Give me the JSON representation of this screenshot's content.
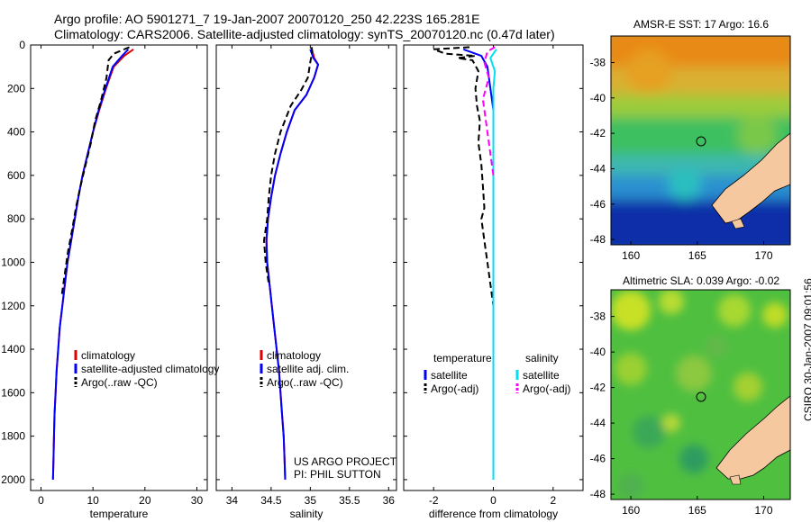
{
  "header": {
    "line1": "Argo profile: AO 5901271_7 19-Jan-2007 20070120_250 42.223S 165.281E",
    "line2": "Climatology: CARS2006. Satellite-adjusted climatology: synTS_20070120.nc (0.47d later)"
  },
  "colors": {
    "climatology": "#e00000",
    "satellite": "#0000ff",
    "argo": "#000000",
    "satellite_salinity": "#00e0f0",
    "argo_salinity_adj": "#ff00ff",
    "land": "#f5c8a0"
  },
  "chart_data": [
    {
      "type": "line",
      "id": "temperature",
      "xlabel": "temperature",
      "xlim": [
        -2,
        32
      ],
      "ylim": [
        2050,
        0
      ],
      "xticks": [
        "0",
        "10",
        "20",
        "30"
      ],
      "yticks": [
        "0",
        "200",
        "400",
        "600",
        "800",
        "1000",
        "1200",
        "1400",
        "1600",
        "1800",
        "2000"
      ],
      "series": [
        {
          "name": "climatology",
          "style": "solid",
          "color": "#e00000",
          "points": [
            [
              17.8,
              20
            ],
            [
              16,
              50
            ],
            [
              14,
              100
            ],
            [
              12.5,
              200
            ],
            [
              11.2,
              300
            ],
            [
              10,
              400
            ],
            [
              9,
              500
            ],
            [
              8,
              600
            ],
            [
              7.2,
              700
            ],
            [
              6.5,
              800
            ],
            [
              5.8,
              900
            ],
            [
              5.1,
              1000
            ],
            [
              4.6,
              1100
            ],
            [
              4.1,
              1200
            ],
            [
              3.6,
              1300
            ],
            [
              3.3,
              1400
            ],
            [
              3,
              1500
            ],
            [
              2.8,
              1600
            ],
            [
              2.6,
              1700
            ],
            [
              2.5,
              1800
            ],
            [
              2.4,
              1900
            ],
            [
              2.3,
              2000
            ]
          ]
        },
        {
          "name": "satellite-adjusted climatology",
          "style": "solid",
          "color": "#0000ff",
          "points": [
            [
              16.8,
              20
            ],
            [
              15.6,
              50
            ],
            [
              13.8,
              100
            ],
            [
              12.4,
              200
            ],
            [
              11.1,
              300
            ],
            [
              10,
              400
            ],
            [
              9,
              500
            ],
            [
              8,
              600
            ],
            [
              7.2,
              700
            ],
            [
              6.5,
              800
            ],
            [
              5.8,
              900
            ],
            [
              5.1,
              1000
            ],
            [
              4.6,
              1100
            ],
            [
              4.1,
              1200
            ],
            [
              3.6,
              1300
            ],
            [
              3.3,
              1400
            ],
            [
              3,
              1500
            ],
            [
              2.8,
              1600
            ],
            [
              2.6,
              1700
            ],
            [
              2.5,
              1800
            ],
            [
              2.4,
              1900
            ],
            [
              2.3,
              2000
            ]
          ]
        },
        {
          "name": "Argo(..raw -QC)",
          "style": "dash",
          "color": "#000000",
          "points": [
            [
              17,
              10
            ],
            [
              14,
              40
            ],
            [
              13,
              70
            ],
            [
              12.6,
              150
            ],
            [
              11.6,
              250
            ],
            [
              10.4,
              350
            ],
            [
              9.6,
              450
            ],
            [
              8.6,
              550
            ],
            [
              7.6,
              650
            ],
            [
              6.7,
              750
            ],
            [
              6,
              850
            ],
            [
              5.2,
              950
            ],
            [
              4.6,
              1050
            ],
            [
              4,
              1150
            ]
          ]
        }
      ],
      "legend": [
        "climatology",
        "satellite-adjusted climatology",
        "Argo(..raw -QC)"
      ],
      "legend_position": "lower-center"
    },
    {
      "type": "line",
      "id": "salinity",
      "xlabel": "salinity",
      "xlim": [
        33.8,
        36.1
      ],
      "ylim": [
        2050,
        0
      ],
      "xticks": [
        "34",
        "34.5",
        "35",
        "35.5",
        "36"
      ],
      "series": [
        {
          "name": "climatology",
          "style": "solid",
          "color": "#e00000",
          "points": [
            [
              35.02,
              20
            ],
            [
              35.05,
              60
            ],
            [
              35.1,
              90
            ],
            [
              35.05,
              150
            ],
            [
              34.95,
              230
            ],
            [
              34.8,
              300
            ],
            [
              34.7,
              400
            ],
            [
              34.62,
              500
            ],
            [
              34.55,
              600
            ],
            [
              34.5,
              700
            ],
            [
              34.46,
              800
            ],
            [
              34.44,
              900
            ],
            [
              34.45,
              1000
            ],
            [
              34.48,
              1100
            ],
            [
              34.51,
              1200
            ],
            [
              34.54,
              1300
            ],
            [
              34.57,
              1400
            ],
            [
              34.6,
              1500
            ],
            [
              34.62,
              1600
            ],
            [
              34.64,
              1700
            ],
            [
              34.66,
              1800
            ],
            [
              34.67,
              1900
            ],
            [
              34.68,
              2000
            ]
          ]
        },
        {
          "name": "satellite adj. clim.",
          "style": "solid",
          "color": "#0000ff",
          "points": [
            [
              35.0,
              20
            ],
            [
              35.04,
              60
            ],
            [
              35.1,
              90
            ],
            [
              35.05,
              150
            ],
            [
              34.95,
              230
            ],
            [
              34.8,
              300
            ],
            [
              34.7,
              400
            ],
            [
              34.62,
              500
            ],
            [
              34.55,
              600
            ],
            [
              34.5,
              700
            ],
            [
              34.46,
              800
            ],
            [
              34.44,
              900
            ],
            [
              34.45,
              1000
            ],
            [
              34.48,
              1100
            ],
            [
              34.51,
              1200
            ],
            [
              34.54,
              1300
            ],
            [
              34.57,
              1400
            ],
            [
              34.6,
              1500
            ],
            [
              34.62,
              1600
            ],
            [
              34.64,
              1700
            ],
            [
              34.66,
              1800
            ],
            [
              34.67,
              1900
            ],
            [
              34.68,
              2000
            ]
          ]
        },
        {
          "name": "Argo(..raw -QC)",
          "style": "dash",
          "color": "#000000",
          "points": [
            [
              35.02,
              10
            ],
            [
              35.02,
              40
            ],
            [
              35.0,
              80
            ],
            [
              34.97,
              150
            ],
            [
              34.88,
              210
            ],
            [
              34.75,
              280
            ],
            [
              34.62,
              400
            ],
            [
              34.55,
              500
            ],
            [
              34.5,
              600
            ],
            [
              34.47,
              700
            ],
            [
              34.45,
              800
            ],
            [
              34.41,
              900
            ],
            [
              34.43,
              1000
            ],
            [
              34.47,
              1100
            ]
          ]
        }
      ],
      "legend": [
        "climatology",
        "satellite adj. clim.",
        "Argo(..raw -QC)"
      ],
      "legend_position": "lower-center",
      "annotation": [
        "US ARGO PROJECT",
        "PI: PHIL SUTTON"
      ]
    },
    {
      "type": "line",
      "id": "difference",
      "xlabel": "difference from climatology",
      "xlim": [
        -3,
        3
      ],
      "ylim": [
        2050,
        0
      ],
      "xticks": [
        "-2",
        "0",
        "2"
      ],
      "series": [
        {
          "name": "temperature satellite",
          "style": "solid",
          "color": "#0000ff",
          "points": [
            [
              -1.0,
              20
            ],
            [
              -0.4,
              50
            ],
            [
              -0.2,
              100
            ],
            [
              -0.1,
              200
            ],
            [
              0,
              300
            ],
            [
              0,
              2000
            ]
          ]
        },
        {
          "name": "temperature Argo(-adj)",
          "style": "dash",
          "color": "#000000",
          "points": [
            [
              -0.8,
              10
            ],
            [
              -2.0,
              20
            ],
            [
              -1.6,
              40
            ],
            [
              -0.6,
              50
            ],
            [
              -1.2,
              60
            ],
            [
              -0.7,
              70
            ],
            [
              -0.5,
              120
            ],
            [
              -0.6,
              200
            ],
            [
              -0.55,
              280
            ],
            [
              -0.45,
              350
            ],
            [
              -0.5,
              450
            ],
            [
              -0.4,
              550
            ],
            [
              -0.35,
              650
            ],
            [
              -0.3,
              750
            ],
            [
              -0.4,
              800
            ],
            [
              -0.3,
              900
            ],
            [
              -0.2,
              1000
            ],
            [
              -0.1,
              1100
            ],
            [
              0,
              1200
            ]
          ]
        },
        {
          "name": "salinity satellite",
          "style": "solid",
          "color": "#00e0f0",
          "points": [
            [
              0.1,
              20
            ],
            [
              -0.1,
              60
            ],
            [
              0.05,
              120
            ],
            [
              0,
              200
            ],
            [
              0,
              2000
            ]
          ]
        },
        {
          "name": "salinity Argo(-adj)",
          "style": "dash",
          "color": "#ff00ff",
          "points": [
            [
              0.05,
              10
            ],
            [
              -0.2,
              30
            ],
            [
              -0.3,
              80
            ],
            [
              -0.15,
              150
            ],
            [
              -0.35,
              250
            ],
            [
              -0.25,
              350
            ],
            [
              -0.1,
              500
            ],
            [
              0,
              600
            ]
          ]
        }
      ],
      "legend_headers": [
        "temperature",
        "salinity"
      ],
      "legend": [
        "satellite",
        "Argo(-adj)",
        "satellite",
        "Argo(-adj)"
      ],
      "legend_position": "lower-center"
    },
    {
      "type": "heatmap",
      "id": "sst_map",
      "title": "AMSR-E SST: 17 Argo: 16.6",
      "xlim": [
        158.5,
        172
      ],
      "ylim": [
        -48.3,
        -36.5
      ],
      "xticks": [
        "160",
        "165",
        "170"
      ],
      "yticks": [
        "-38",
        "-40",
        "-42",
        "-44",
        "-46",
        "-48"
      ],
      "marker": [
        165.281,
        -42.223
      ]
    },
    {
      "type": "heatmap",
      "id": "sla_map",
      "title": "Altimetric SLA: 0.039 Argo: -0.02",
      "xlim": [
        158.5,
        172
      ],
      "ylim": [
        -48.3,
        -36.5
      ],
      "xticks": [
        "160",
        "165",
        "170"
      ],
      "yticks": [
        "-38",
        "-40",
        "-42",
        "-44",
        "-46",
        "-48"
      ],
      "marker": [
        165.281,
        -42.223
      ]
    }
  ],
  "side_stamp": "CSIRO 30-Jan-2007 09:01:56"
}
